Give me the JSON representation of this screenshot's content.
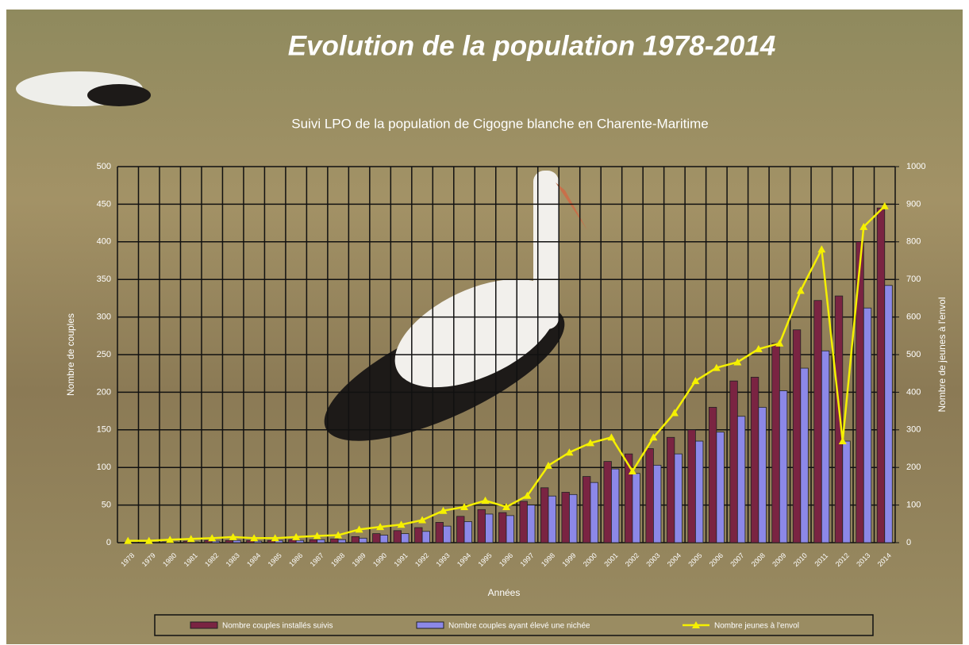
{
  "chart_data": {
    "type": "bar",
    "title": "Evolution de la population 1978-2014",
    "subtitle": "Suivi LPO de la population de Cigogne blanche en Charente-Maritime",
    "x_label": "Années",
    "y_label": "Nombre de couples",
    "y2_label": "Nombre de jeunes à l'envol",
    "categories": [
      "1978",
      "1979",
      "1980",
      "1981",
      "1982",
      "1983",
      "1984",
      "1985",
      "1986",
      "1987",
      "1988",
      "1989",
      "1990",
      "1991",
      "1992",
      "1993",
      "1994",
      "1995",
      "1996",
      "1997",
      "1998",
      "1999",
      "2000",
      "2001",
      "2002",
      "2003",
      "2004",
      "2005",
      "2006",
      "2007",
      "2008",
      "2009",
      "2010",
      "2011",
      "2012",
      "2013",
      "2014"
    ],
    "series": [
      {
        "name": "Nombre couples installés suivis",
        "type": "bar",
        "color": "#7a2442",
        "values": [
          0,
          0,
          1,
          2,
          3,
          3,
          3,
          3,
          4,
          4,
          5,
          8,
          12,
          16,
          20,
          27,
          35,
          44,
          40,
          55,
          73,
          67,
          88,
          108,
          118,
          125,
          140,
          150,
          180,
          215,
          220,
          265,
          283,
          322,
          328,
          400,
          445
        ]
      },
      {
        "name": "Nombre couples ayant élevé une nichée",
        "type": "bar",
        "color": "#8c88e8",
        "values": [
          0,
          0,
          1,
          1,
          2,
          3,
          2,
          3,
          3,
          4,
          4,
          6,
          10,
          12,
          15,
          22,
          28,
          38,
          36,
          50,
          62,
          64,
          80,
          98,
          92,
          103,
          118,
          135,
          147,
          168,
          180,
          202,
          232,
          255,
          135,
          312,
          342
        ]
      },
      {
        "name": "Nombre jeunes à l'envol",
        "type": "line",
        "axis": "y2",
        "color": "#f5f000",
        "values": [
          5,
          5,
          8,
          10,
          12,
          15,
          12,
          12,
          15,
          18,
          20,
          35,
          42,
          48,
          60,
          85,
          95,
          112,
          95,
          125,
          205,
          240,
          265,
          280,
          190,
          280,
          345,
          430,
          465,
          480,
          515,
          530,
          670,
          780,
          270,
          840,
          895
        ]
      }
    ],
    "ylim": [
      0,
      500
    ],
    "yticks": [
      0,
      50,
      100,
      150,
      200,
      250,
      300,
      350,
      400,
      450,
      500
    ],
    "y2lim": [
      0,
      1000
    ],
    "y2ticks": [
      0,
      100,
      200,
      300,
      400,
      500,
      600,
      700,
      800,
      900,
      1000
    ],
    "grid": true,
    "legend": "bottom"
  }
}
